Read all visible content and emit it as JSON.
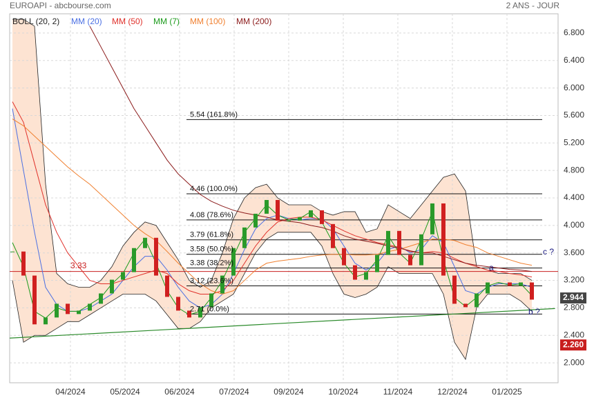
{
  "chart_data": {
    "type": "candlestick",
    "title": "EUROAPI - abcbourse.com",
    "subtitle": "2 ANS - JOUR",
    "x": [
      0,
      1,
      2,
      3,
      4,
      5,
      6,
      7,
      8,
      9,
      10,
      11,
      12,
      13,
      14,
      15,
      16,
      17,
      18,
      19,
      20,
      21,
      22,
      23,
      24,
      25,
      26,
      27,
      28,
      29,
      30,
      31,
      32,
      33,
      34,
      35,
      36,
      37,
      38,
      39,
      40,
      41,
      42,
      43,
      44,
      45,
      46,
      47
    ],
    "values": [
      3.62,
      3.27,
      2.56,
      2.66,
      2.86,
      2.71,
      2.76,
      2.86,
      3.01,
      3.21,
      3.32,
      3.67,
      3.82,
      3.27,
      2.96,
      2.76,
      2.66,
      2.81,
      3.01,
      3.27,
      3.67,
      3.97,
      4.17,
      4.37,
      4.07,
      4.07,
      4.12,
      4.22,
      4.02,
      3.67,
      3.42,
      3.21,
      3.32,
      3.57,
      3.92,
      3.57,
      3.42,
      3.87,
      4.32,
      3.27,
      2.86,
      2.81,
      3.01,
      3.17,
      3.17,
      3.12,
      3.17,
      2.92
    ],
    "up_color": "#2a9a2a",
    "down_color": "#d02020",
    "bollinger": {
      "name": "BOLL (20, 2)",
      "color": "#222222",
      "fill": "#fde3d2",
      "upper": [
        7.0,
        7.0,
        6.9,
        4.6,
        3.3,
        3.15,
        3.1,
        3.1,
        3.2,
        3.4,
        3.7,
        3.9,
        4.05,
        4.0,
        3.75,
        3.5,
        3.2,
        3.1,
        3.2,
        3.6,
        4.1,
        4.4,
        4.55,
        4.6,
        4.4,
        4.3,
        4.3,
        4.3,
        4.2,
        4.15,
        4.2,
        4.2,
        3.9,
        3.95,
        4.3,
        4.2,
        4.1,
        4.3,
        4.5,
        4.7,
        4.75,
        4.5,
        3.4,
        3.35,
        3.3,
        3.3,
        3.3,
        3.2
      ],
      "lower": [
        3.2,
        2.3,
        2.4,
        2.4,
        2.5,
        2.6,
        2.6,
        2.7,
        2.8,
        2.9,
        3.0,
        3.0,
        3.0,
        2.9,
        2.7,
        2.5,
        2.5,
        2.6,
        2.8,
        2.9,
        3.0,
        3.3,
        3.6,
        3.8,
        3.9,
        3.9,
        3.9,
        3.9,
        3.7,
        3.3,
        3.0,
        2.95,
        3.0,
        3.1,
        3.4,
        3.3,
        3.3,
        3.3,
        3.3,
        3.0,
        2.3,
        2.05,
        2.8,
        3.0,
        3.0,
        3.0,
        2.9,
        2.75
      ]
    },
    "series": [
      {
        "name": "MM (20)",
        "color": "#4a6fe3",
        "values": [
          5.7,
          4.8,
          3.9,
          3.1,
          2.85,
          2.75,
          2.75,
          2.8,
          2.9,
          3.0,
          3.2,
          3.4,
          3.55,
          3.55,
          3.35,
          3.1,
          2.9,
          2.8,
          2.85,
          3.0,
          3.3,
          3.65,
          3.95,
          4.1,
          4.15,
          4.1,
          4.08,
          4.1,
          4.1,
          3.95,
          3.7,
          3.45,
          3.35,
          3.45,
          3.65,
          3.7,
          3.6,
          3.65,
          3.85,
          3.75,
          3.4,
          3.05,
          3.0,
          3.1,
          3.15,
          3.15,
          3.15,
          3.1
        ]
      },
      {
        "name": "MM (50)",
        "color": "#e0302a",
        "values": [
          5.8,
          5.5,
          4.9,
          4.3,
          3.9,
          3.6,
          3.4,
          3.2,
          3.15,
          3.15,
          3.2,
          3.25,
          3.3,
          3.35,
          3.3,
          3.15,
          3.05,
          3.0,
          3.0,
          3.05,
          3.2,
          3.45,
          3.7,
          3.9,
          4.05,
          4.1,
          4.12,
          4.12,
          4.08,
          4.0,
          3.92,
          3.85,
          3.8,
          3.75,
          3.72,
          3.68,
          3.62,
          3.6,
          3.62,
          3.6,
          3.52,
          3.45,
          3.4,
          3.35,
          3.33,
          3.3,
          3.28,
          3.25
        ]
      },
      {
        "name": "MM (7)",
        "color": "#1a9a1a",
        "values": [
          3.75,
          3.4,
          2.75,
          2.65,
          2.8,
          2.75,
          2.75,
          2.85,
          2.95,
          3.15,
          3.3,
          3.6,
          3.8,
          3.45,
          3.05,
          2.8,
          2.7,
          2.75,
          2.95,
          3.2,
          3.55,
          3.9,
          4.1,
          4.3,
          4.15,
          4.08,
          4.1,
          4.2,
          4.05,
          3.75,
          3.45,
          3.25,
          3.3,
          3.5,
          3.85,
          3.6,
          3.45,
          3.8,
          4.2,
          3.5,
          2.95,
          2.82,
          2.95,
          3.12,
          3.17,
          3.13,
          3.15,
          2.98
        ]
      },
      {
        "name": "MM (100)",
        "color": "#f08030",
        "values": [
          5.55,
          5.45,
          5.3,
          5.15,
          5.0,
          4.85,
          4.72,
          4.6,
          4.45,
          4.3,
          4.15,
          4.0,
          3.88,
          3.78,
          3.62,
          3.45,
          3.3,
          3.15,
          3.05,
          3.0,
          3.05,
          3.2,
          3.35,
          3.45,
          3.48,
          3.5,
          3.52,
          3.55,
          3.57,
          3.58,
          3.58,
          3.57,
          3.57,
          3.58,
          3.62,
          3.65,
          3.7,
          3.75,
          3.8,
          3.8,
          3.78,
          3.72,
          3.68,
          3.6,
          3.55,
          3.5,
          3.45,
          3.42
        ]
      },
      {
        "name": "MM (200)",
        "color": "#8b1a1a",
        "values": [
          null,
          null,
          null,
          null,
          null,
          null,
          null,
          6.9,
          6.6,
          6.3,
          6.0,
          5.7,
          5.45,
          5.2,
          4.95,
          4.75,
          4.6,
          4.45,
          4.35,
          4.28,
          4.22,
          4.18,
          4.15,
          4.12,
          4.08,
          4.06,
          4.04,
          4.0,
          3.97,
          3.92,
          3.85,
          3.8,
          3.77,
          3.74,
          3.7,
          3.67,
          3.63,
          3.6,
          3.6,
          3.55,
          3.5,
          3.45,
          3.42,
          3.4,
          3.38,
          3.36,
          3.35,
          3.33
        ]
      }
    ],
    "fibonacci": [
      {
        "value": 5.54,
        "label": "5.54  (161.8%)"
      },
      {
        "value": 4.46,
        "label": "4.46  (100.0%)"
      },
      {
        "value": 4.08,
        "label": "4.08  (78.6%)"
      },
      {
        "value": 3.79,
        "label": "3.79  (61.8%)"
      },
      {
        "value": 3.58,
        "label": "3.58  (50.0%)"
      },
      {
        "value": 3.38,
        "label": "3.38  (38.2%)"
      },
      {
        "value": 3.12,
        "label": "3.12  (23.6%)"
      },
      {
        "value": 2.71,
        "label": "2.71  (0.0%)"
      }
    ],
    "fibonacci_color": "#111111",
    "support": {
      "value": 3.33,
      "color": "#c81e1e"
    },
    "trendline": {
      "x": [
        -0.25,
        49.1
      ],
      "values": [
        2.36,
        2.79
      ],
      "color": "#2a8a2a"
    },
    "annotations": [
      "a",
      "b ?",
      "c ?"
    ],
    "last_price": {
      "value": 2.944,
      "color": "#444444"
    },
    "low_marker": {
      "value": {
        "value": 2.26,
        "label": "2.260"
      },
      "color": "#c81e1e"
    },
    "xlim": [
      -0.25,
      49.375
    ],
    "xticks": [
      {
        "value": 5.25,
        "label": "04/2024"
      },
      {
        "value": 10.19,
        "label": "05/2024"
      },
      {
        "value": 15.125,
        "label": "06/2024"
      },
      {
        "value": 20.06,
        "label": "07/2024"
      },
      {
        "value": 25,
        "label": "09/2024"
      },
      {
        "value": 29.94,
        "label": "10/2024"
      },
      {
        "value": 34.875,
        "label": "11/2024"
      },
      {
        "value": 39.81,
        "label": "12/2024"
      },
      {
        "value": 44.75,
        "label": "01/2025"
      }
    ],
    "ylim": [
      1.71,
      7.08
    ],
    "yticks": [
      {
        "value": 2.0,
        "label": "2.000"
      },
      {
        "value": 2.4,
        "label": "2.400"
      },
      {
        "value": 2.8,
        "label": "2.800"
      },
      {
        "value": 3.2,
        "label": "3.200"
      },
      {
        "value": 3.6,
        "label": "3.600"
      },
      {
        "value": 4.0,
        "label": "4.000"
      },
      {
        "value": 4.4,
        "label": "4.400"
      },
      {
        "value": 4.8,
        "label": "4.800"
      },
      {
        "value": 5.2,
        "label": "5.200"
      },
      {
        "value": 5.6,
        "label": "5.600"
      },
      {
        "value": 6.0,
        "label": "6.000"
      },
      {
        "value": 6.4,
        "label": "6.400"
      },
      {
        "value": 6.8,
        "label": "6.800"
      }
    ],
    "grid": true
  }
}
